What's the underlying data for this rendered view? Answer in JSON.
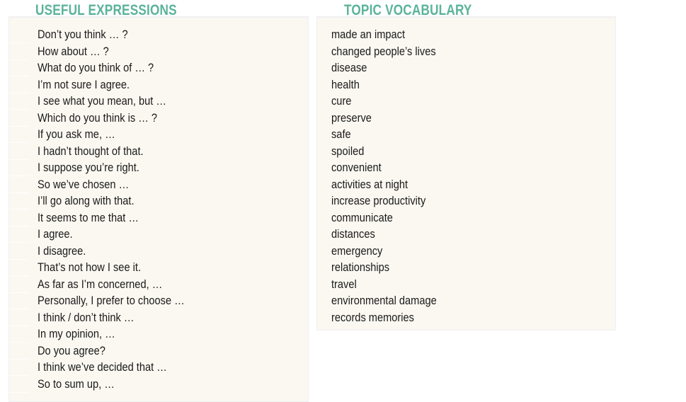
{
  "expressions": {
    "title": "USEFUL EXPRESSIONS",
    "items": [
      "Don’t you think … ?",
      "How about … ?",
      "What do you think of … ?",
      "I’m not sure I agree.",
      "I see what you mean, but …",
      "Which do you think is … ?",
      "If you ask me, …",
      "I hadn’t thought of that.",
      "I suppose you’re right.",
      "So we’ve chosen …",
      "I’ll go along with that.",
      "It seems to me that …",
      "I agree.",
      "I disagree.",
      "That’s not how I see it.",
      "As far as I’m concerned, …",
      "Personally, I prefer to choose …",
      "I think / don’t think …",
      "In my opinion, …",
      "Do you agree?",
      "I think we’ve decided that …",
      "So to sum up, …"
    ]
  },
  "vocabulary": {
    "title": "TOPIC VOCABULARY",
    "items": [
      "made an impact",
      "changed people’s lives",
      "disease",
      "health",
      "cure",
      "preserve",
      "safe",
      "spoiled",
      "convenient",
      "activities at night",
      "increase productivity",
      "communicate",
      "distances",
      "emergency",
      "relationships",
      "travel",
      "environmental damage",
      "records memories"
    ]
  },
  "colors": {
    "heading": "#5bb39a",
    "panel": "#faf8f1"
  }
}
